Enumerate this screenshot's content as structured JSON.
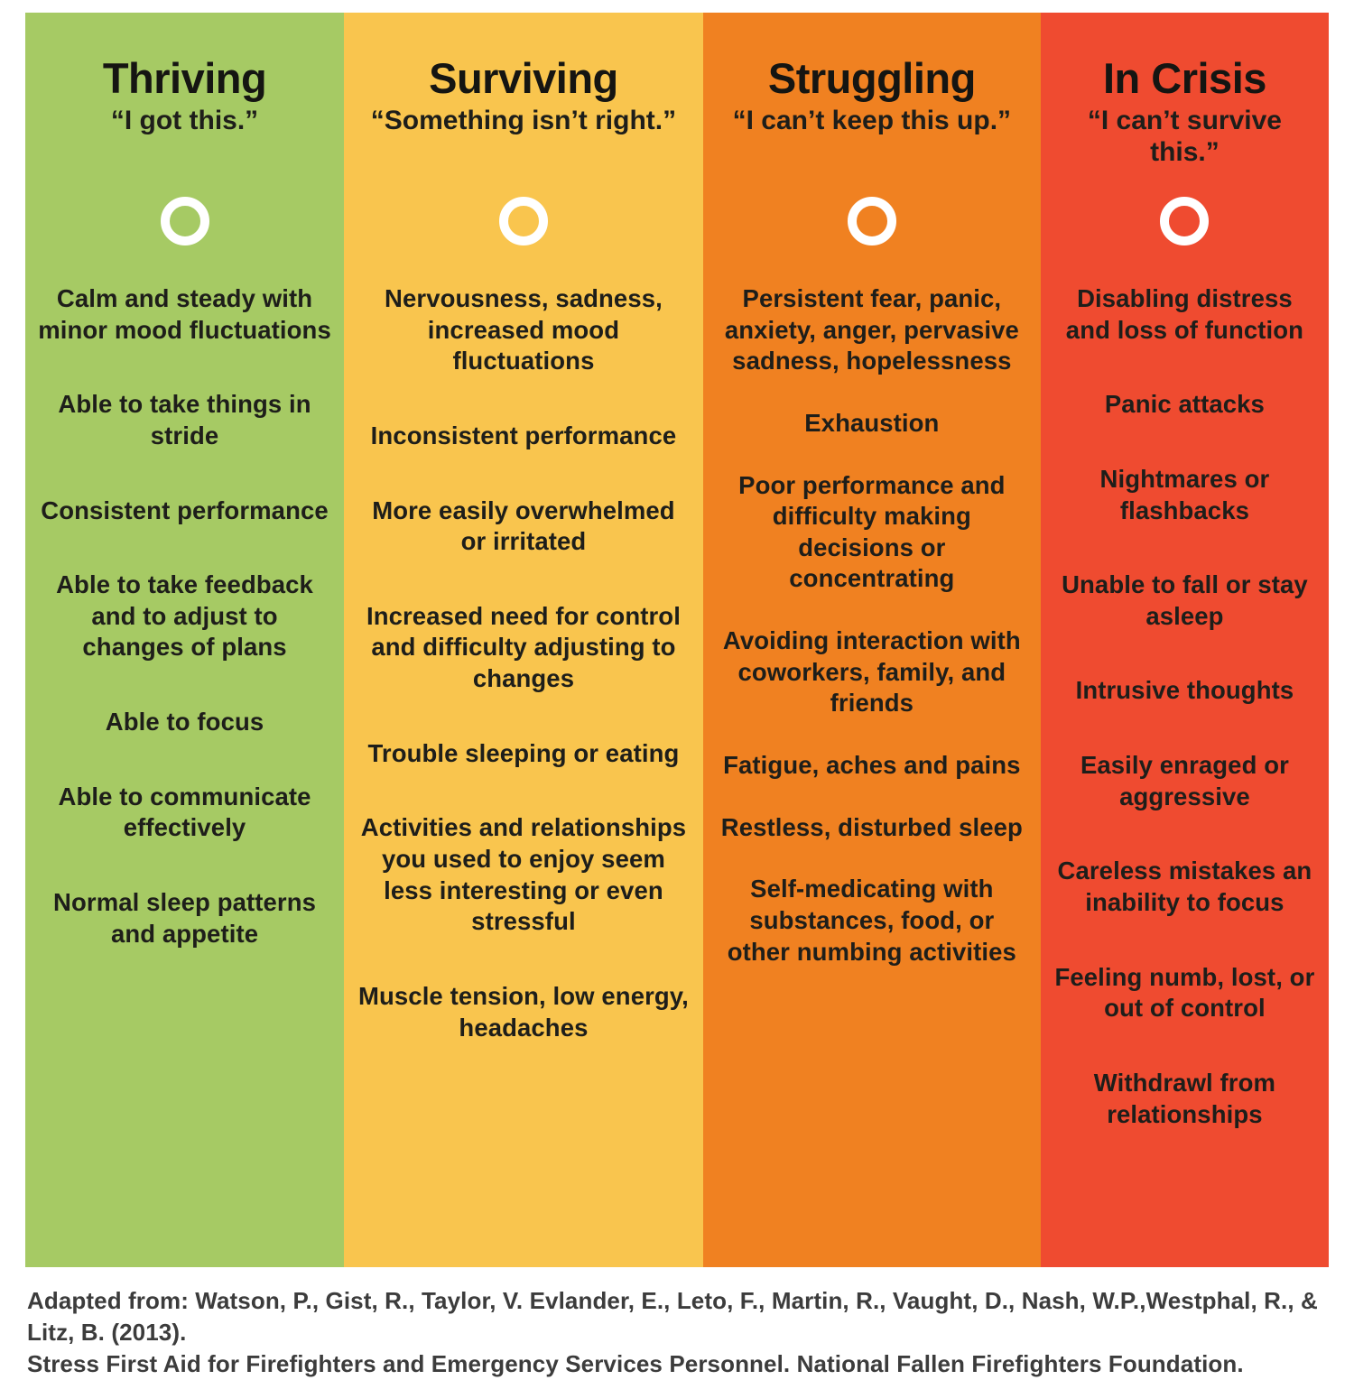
{
  "columns": [
    {
      "id": "thriving",
      "title": "Thriving",
      "quote": "“I got this.”",
      "color": "#a6ca64",
      "items": [
        "Calm and steady with minor mood fluctuations",
        "Able to take things in stride",
        "Consistent performance",
        "Able to take feedback and to adjust to changes of plans",
        "Able to focus",
        "Able to communicate effectively",
        "Normal sleep patterns and appetite"
      ]
    },
    {
      "id": "surviving",
      "title": "Surviving",
      "quote": "“Something isn’t right.”",
      "color": "#f9c54e",
      "items": [
        "Nervousness, sadness, increased mood fluctuations",
        "Inconsistent performance",
        "More easily overwhelmed or irritated",
        "Increased need for control and difficulty adjusting to changes",
        "Trouble sleeping or eating",
        "Activities and relationships you used to enjoy seem less interesting or even stressful",
        "Muscle tension, low energy, headaches"
      ]
    },
    {
      "id": "struggling",
      "title": "Struggling",
      "quote": "“I can’t keep this up.”",
      "color": "#f08121",
      "items": [
        "Persistent fear, panic, anxiety, anger, pervasive sadness, hopelessness",
        "Exhaustion",
        "Poor performance and difficulty making decisions or concentrating",
        "Avoiding interaction with coworkers, family, and friends",
        "Fatigue, aches and pains",
        "Restless, disturbed sleep",
        "Self-medicating with substances, food, or other numbing activities"
      ]
    },
    {
      "id": "in-crisis",
      "title": "In Crisis",
      "quote": "“I can’t survive this.”",
      "color": "#ef4b30",
      "items": [
        "Disabling distress and loss of function",
        "Panic attacks",
        "Nightmares or flashbacks",
        "Unable to fall or stay asleep",
        "Intrusive thoughts",
        "Easily enraged or aggressive",
        "Careless mistakes an inability to focus",
        "Feeling numb, lost, or out of control",
        "Withdrawl from relationships"
      ]
    }
  ],
  "timeline": {
    "line_color": "#ffffff"
  },
  "footer": {
    "line1": "Adapted from: Watson, P., Gist, R., Taylor, V. Evlander, E., Leto, F., Martin, R., Vaught, D., Nash, W.P.,Westphal, R., & Litz, B. (2013).",
    "line2": "Stress First Aid for Firefighters and Emergency Services Personnel. National Fallen Firefighters Foundation."
  }
}
